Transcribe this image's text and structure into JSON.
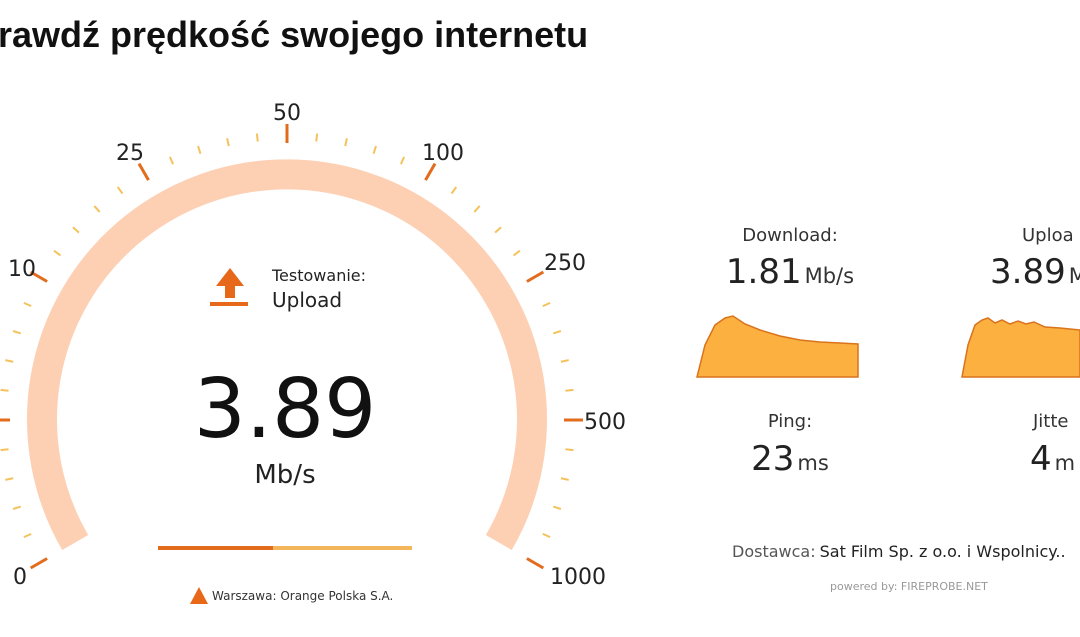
{
  "header": {
    "title": "rawdź prędkość swojego internetu"
  },
  "gauge": {
    "scale_labels": [
      "0",
      "10",
      "25",
      "50",
      "100",
      "250",
      "500",
      "1000"
    ],
    "status_label": "Testowanie:",
    "status": "Upload",
    "speed": "3.89",
    "unit": "Mb/s",
    "server": "Warszawa: Orange Polska S.A."
  },
  "results": [
    {
      "label": "Download:",
      "value": "1.81",
      "unit": "Mb/s"
    },
    {
      "label": "Uploa",
      "value": "3.89",
      "unit": "M"
    },
    {
      "label": "Ping:",
      "value": "23",
      "unit": "ms"
    },
    {
      "label": "Jitte",
      "value": "4",
      "unit": "m"
    }
  ],
  "provider": {
    "label": "Dostawca:",
    "name": "Sat Film Sp. z o.o. i Wspolnicy.."
  },
  "footer": {
    "powered_by": "powered by: FIREPROBE.NET"
  }
}
